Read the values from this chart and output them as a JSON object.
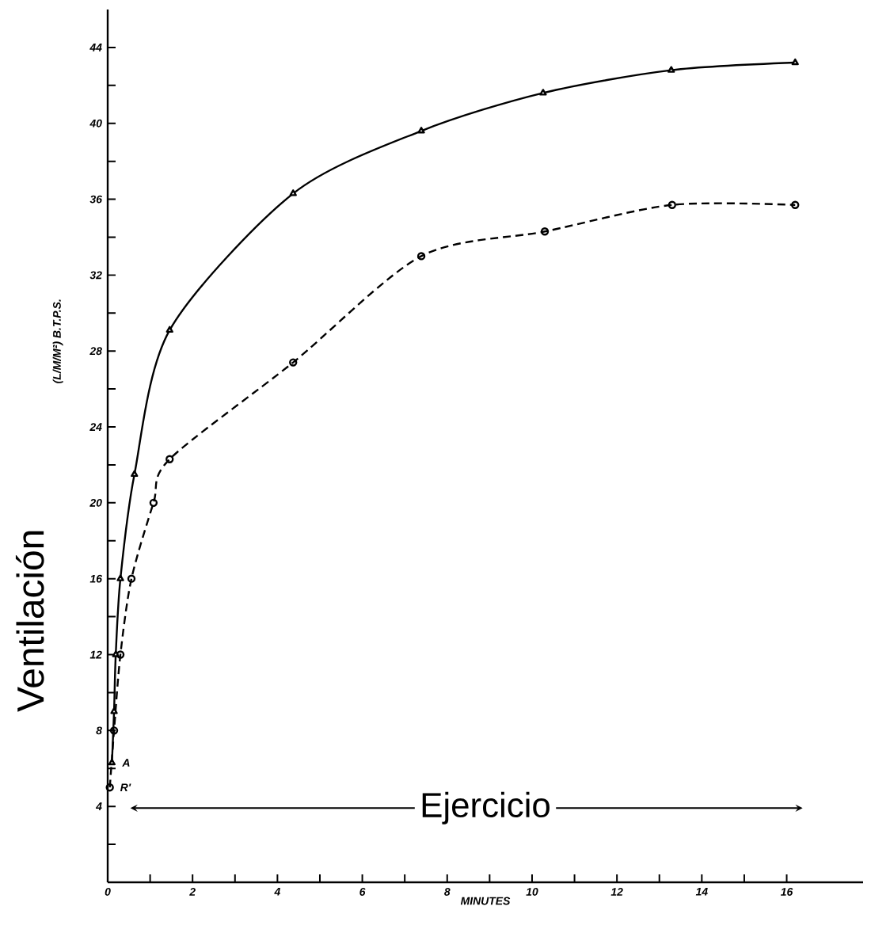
{
  "chart_data": {
    "type": "line",
    "xlabel": "MINUTES",
    "ylabel": "Ventilación",
    "xlim": [
      0,
      17.8
    ],
    "ylim": [
      0,
      46
    ],
    "xticks": [
      0,
      {
        "value": 1,
        "label": null
      },
      2,
      {
        "value": 3,
        "label": null
      },
      4,
      {
        "value": 5,
        "label": null
      },
      6,
      {
        "value": 7,
        "label": null
      },
      8,
      {
        "value": 9,
        "label": null
      },
      10,
      {
        "value": 11,
        "label": null
      },
      12,
      {
        "value": 13,
        "label": null
      },
      14,
      {
        "value": 15,
        "label": null
      },
      16
    ],
    "yticks": [
      {
        "value": 2,
        "label": null
      },
      4,
      {
        "value": 6,
        "label": null
      },
      8,
      {
        "value": 10,
        "label": null
      },
      12,
      {
        "value": 14,
        "label": null
      },
      16,
      {
        "value": 18,
        "label": null
      },
      20,
      {
        "value": 22,
        "label": null
      },
      24,
      {
        "value": 26,
        "label": null
      },
      28,
      {
        "value": 30,
        "label": null
      },
      32,
      {
        "value": 34,
        "label": null
      },
      36,
      {
        "value": 38,
        "label": null
      },
      40,
      {
        "value": 42,
        "label": null
      },
      44
    ],
    "grid": false,
    "legend": false,
    "series": [
      {
        "color": "#000000",
        "line_style": "solid",
        "marker": "triangle",
        "x": [
          0.1,
          0.15,
          0.19,
          0.3,
          0.63,
          1.46,
          4.37,
          7.39,
          10.26,
          13.28,
          16.2
        ],
        "values": [
          6.3,
          9,
          12,
          16,
          21.5,
          29.1,
          36.3,
          39.6,
          41.6,
          42.8,
          43.2
        ]
      },
      {
        "color": "#000000",
        "line_style": "dashed",
        "marker": "circle",
        "x": [
          0.05,
          0.15,
          0.3,
          0.56,
          1.08,
          1.46,
          4.37,
          7.39,
          10.3,
          13.3,
          16.2
        ],
        "values": [
          5,
          8,
          12,
          16,
          20,
          22.3,
          27.4,
          33.0,
          34.3,
          35.7,
          35.7
        ]
      }
    ],
    "annotations": [
      "(L/M/M²) B.T.P.S.",
      {
        "text": "A",
        "x": 0.1,
        "y": 6.3
      },
      {
        "text": "R'",
        "x": 0.05,
        "y": 5
      },
      "Ejercicio"
    ]
  }
}
